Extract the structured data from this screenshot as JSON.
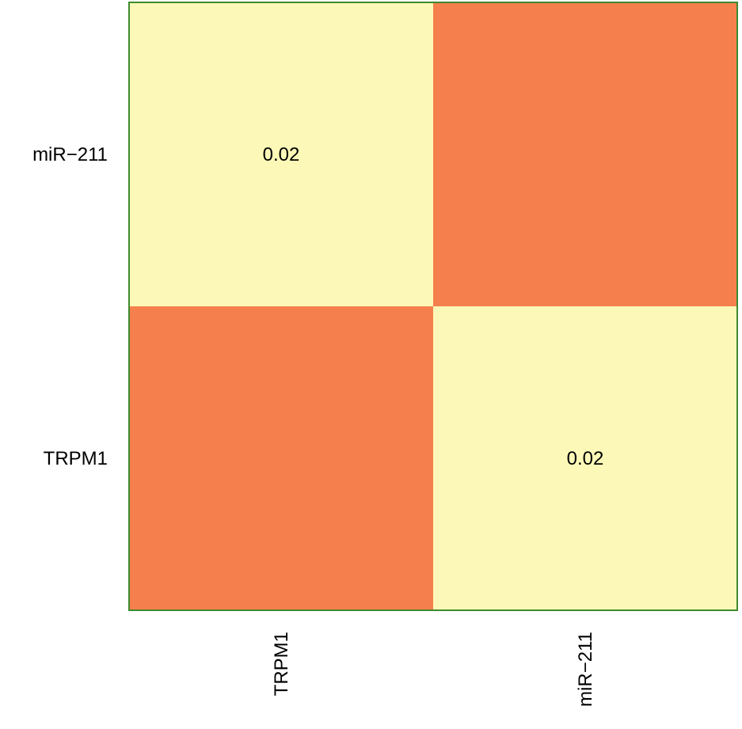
{
  "chart_data": {
    "type": "heatmap",
    "row_labels": [
      "miR−211",
      "TRPM1"
    ],
    "column_labels": [
      "TRPM1",
      "miR−211"
    ],
    "cells": [
      [
        {
          "value": 0.02,
          "label": "0.02",
          "color": "#fcf9b8"
        },
        {
          "value": null,
          "label": "",
          "color": "#f5804d"
        }
      ],
      [
        {
          "value": null,
          "label": "",
          "color": "#f5804d"
        },
        {
          "value": 0.02,
          "label": "0.02",
          "color": "#fcf9b8"
        }
      ]
    ],
    "border_color": "#3d8a2e",
    "title": "",
    "xlabel": "",
    "ylabel": ""
  }
}
